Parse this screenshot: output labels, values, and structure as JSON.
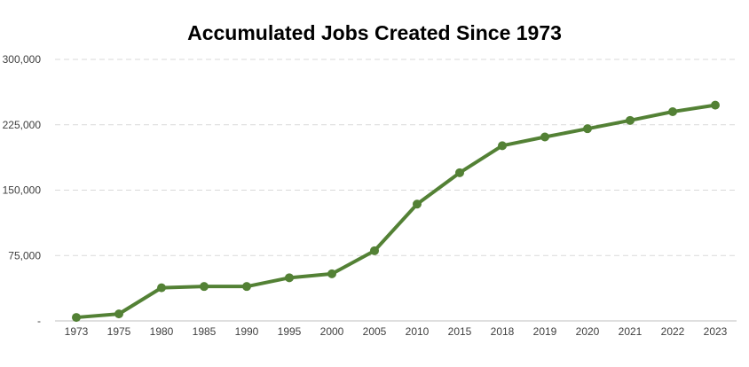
{
  "chart_data": {
    "type": "line",
    "title": "Accumulated Jobs Created Since 1973",
    "xlabel": "",
    "ylabel": "",
    "categories": [
      "1973",
      "1975",
      "1980",
      "1985",
      "1990",
      "1995",
      "2000",
      "2005",
      "2010",
      "2015",
      "2018",
      "2019",
      "2020",
      "2021",
      "2022",
      "2023"
    ],
    "series": [
      {
        "name": "Accumulated Jobs Created",
        "values": [
          4000,
          8000,
          38000,
          39500,
          39500,
          49500,
          54000,
          80500,
          134000,
          170000,
          201000,
          211000,
          220500,
          230000,
          240000,
          247500
        ]
      }
    ],
    "ylim": [
      0,
      300000
    ],
    "yticks": [
      0,
      75000,
      150000,
      225000,
      300000
    ],
    "ytick_labels": [
      "-",
      "75,000",
      "150,000",
      "225,000",
      "300,000"
    ],
    "grid": true,
    "legend": "none",
    "colors": {
      "line": "#538135",
      "grid": "#d9d9d9",
      "axis": "#bfbfbf",
      "text": "#404040"
    }
  }
}
